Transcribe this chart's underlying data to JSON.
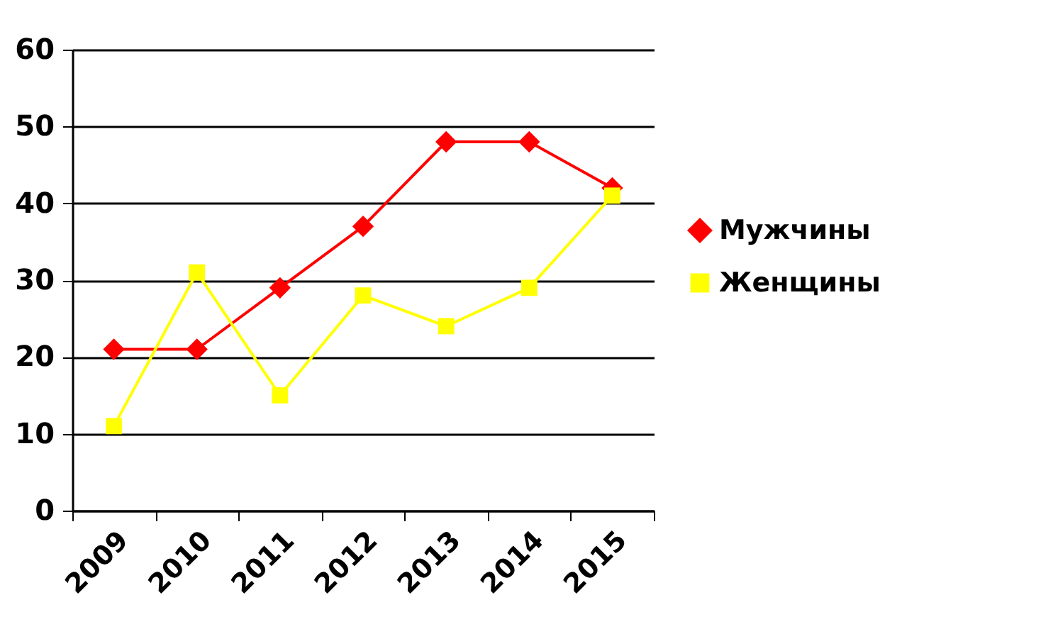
{
  "chart_data": {
    "type": "line",
    "categories": [
      "2009",
      "2010",
      "2011",
      "2012",
      "2013",
      "2014",
      "2015"
    ],
    "series": [
      {
        "name": "Мужчины",
        "color": "#ff0000",
        "marker": "diamond",
        "values": [
          21,
          21,
          29,
          37,
          48,
          48,
          42
        ]
      },
      {
        "name": "Женщины",
        "color": "#ffff00",
        "marker": "square",
        "values": [
          11,
          31,
          15,
          28,
          24,
          29,
          41
        ]
      }
    ],
    "ylim": [
      0,
      60
    ],
    "yticks": [
      0,
      10,
      20,
      30,
      40,
      50,
      60
    ],
    "grid": "y",
    "legend": "right"
  }
}
